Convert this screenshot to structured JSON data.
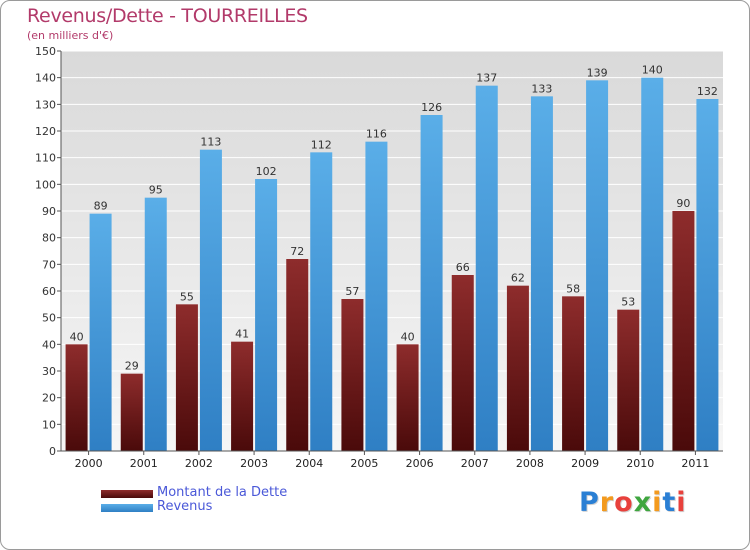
{
  "colors": {
    "background": "#ffffff",
    "title": "#b23a6a",
    "dette_top": "#8e2c2c",
    "dette_bottom": "#4a0a0a",
    "revenus_top": "#5aaee8",
    "revenus_bottom": "#2f7fc4",
    "legend_text": "#4a58d8",
    "grid": "#ffffff",
    "plot_bg_top": "#d9d9d9",
    "plot_bg_bottom": "#f6f6f6"
  },
  "logo": {
    "letters": [
      "P",
      "r",
      "o",
      "x",
      "i",
      "t",
      "i"
    ],
    "colors": [
      "#2a7fd4",
      "#f39a1e",
      "#e8413c",
      "#3fa63f",
      "#f39a1e",
      "#2a7fd4",
      "#e8413c"
    ]
  },
  "chart_data": {
    "type": "bar",
    "title": "Revenus/Dette - TOURREILLES",
    "subtitle": "(en milliers d'€)",
    "categories": [
      "2000",
      "2001",
      "2002",
      "2003",
      "2004",
      "2005",
      "2006",
      "2007",
      "2008",
      "2009",
      "2010",
      "2011"
    ],
    "series": [
      {
        "name": "Montant de la Dette",
        "values": [
          40,
          29,
          55,
          41,
          72,
          57,
          40,
          66,
          62,
          58,
          53,
          90
        ]
      },
      {
        "name": "Revenus",
        "values": [
          89,
          95,
          113,
          102,
          112,
          116,
          126,
          137,
          133,
          139,
          140,
          132
        ]
      }
    ],
    "ylim": [
      0,
      150
    ],
    "yticks": [
      0,
      10,
      20,
      30,
      40,
      50,
      60,
      70,
      80,
      90,
      100,
      110,
      120,
      130,
      140,
      150
    ],
    "grid": true,
    "legend_position": "bottom-left",
    "xlabel": "",
    "ylabel": ""
  }
}
